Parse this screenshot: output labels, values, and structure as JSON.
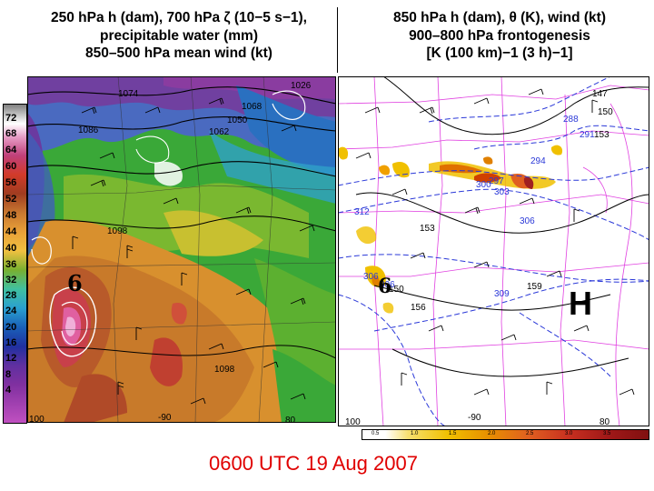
{
  "left_panel": {
    "title_lines": [
      "250 hPa h (dam), 700 hPa ζ (10−5 s−1),",
      "precipitable water (mm)",
      "850–500 hPa mean wind (kt)"
    ],
    "colorbar_ticks": [
      "72",
      "68",
      "64",
      "60",
      "56",
      "52",
      "48",
      "44",
      "40",
      "36",
      "32",
      "28",
      "24",
      "20",
      "16",
      "12",
      "8",
      "4"
    ],
    "contour_labels": [
      "1074",
      "1026",
      "1086",
      "1068",
      "1050",
      "1062",
      "1098",
      "1098"
    ],
    "axis_labels": [
      "100",
      "-90",
      "80"
    ],
    "storm_symbol": "6"
  },
  "right_panel": {
    "title_lines": [
      "850 hPa h (dam), θ (K), wind (kt)",
      "900–800 hPa frontogenesis",
      "[K (100 km)−1 (3 h)−1]"
    ],
    "height_labels": [
      "147",
      "150",
      "153",
      "153",
      "156",
      "159",
      "150"
    ],
    "theta_labels": [
      "288",
      "291",
      "294",
      "297",
      "300",
      "303",
      "306",
      "312",
      "306",
      "309",
      "306"
    ],
    "axis_labels": [
      "100",
      "-90",
      "80"
    ],
    "high_label": "H",
    "storm_symbol": "6",
    "frontogenesis_ticks": [
      "0.5",
      "1.0",
      "1.5",
      "2.0",
      "2.5",
      "3.0",
      "3.5"
    ]
  },
  "timestamp": "0600 UTC 19 Aug 2007"
}
